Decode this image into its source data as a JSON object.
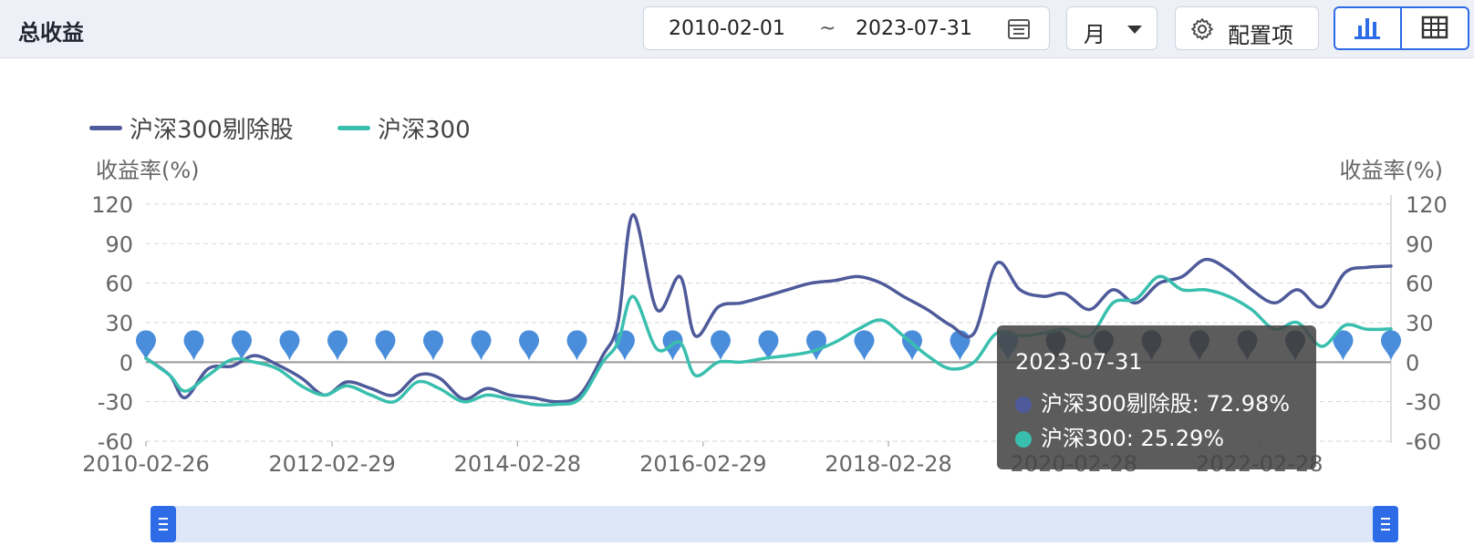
{
  "header": {
    "title": "总收益",
    "date_start": "2010-02-01",
    "date_separator": "~",
    "date_end": "2023-07-31",
    "period": "月",
    "config_label": "配置项",
    "icons": {
      "calendar": "calendar-icon",
      "dropdown": "chevron-down-icon",
      "config": "gear-icon",
      "chart_view": "bar-chart-icon",
      "table_view": "table-icon"
    },
    "active_view": "chart"
  },
  "tooltip": {
    "date": "2023-07-31",
    "rows": [
      {
        "label": "沪深300剔除股: 72.98%",
        "color": "#4e5a9a"
      },
      {
        "label": "沪深300: 25.29%",
        "color": "#39bfae"
      }
    ]
  },
  "chart_data": {
    "type": "line",
    "legend": [
      {
        "name": "沪深300剔除股",
        "color": "#4e5a9a"
      },
      {
        "name": "沪深300",
        "color": "#39bfae"
      }
    ],
    "ylabel_left": "收益率(%)",
    "ylabel_right": "收益率(%)",
    "ylim": [
      -60,
      120
    ],
    "yticks": [
      120,
      90,
      60,
      30,
      0,
      -30,
      -60
    ],
    "xlim": [
      "2010-02-26",
      "2023-07-31"
    ],
    "xticks": [
      "2010-02-26",
      "2012-02-29",
      "2014-02-28",
      "2016-02-29",
      "2018-02-28",
      "2020-02-28",
      "2022-02-28"
    ],
    "series": [
      {
        "name": "沪深300剔除股",
        "color": "#4e5a9a",
        "points": [
          [
            "2010-02-26",
            3
          ],
          [
            "2010-05-31",
            -10
          ],
          [
            "2010-07-30",
            -27
          ],
          [
            "2010-10-29",
            -5
          ],
          [
            "2011-01-31",
            -3
          ],
          [
            "2011-04-29",
            5
          ],
          [
            "2011-07-29",
            -2
          ],
          [
            "2011-10-31",
            -12
          ],
          [
            "2012-01-31",
            -25
          ],
          [
            "2012-04-27",
            -15
          ],
          [
            "2012-07-31",
            -20
          ],
          [
            "2012-10-31",
            -25
          ],
          [
            "2013-01-31",
            -10
          ],
          [
            "2013-04-26",
            -12
          ],
          [
            "2013-07-31",
            -28
          ],
          [
            "2013-10-31",
            -20
          ],
          [
            "2014-01-27",
            -25
          ],
          [
            "2014-04-30",
            -27
          ],
          [
            "2014-07-31",
            -30
          ],
          [
            "2014-10-31",
            -25
          ],
          [
            "2015-01-30",
            5
          ],
          [
            "2015-03-31",
            30
          ],
          [
            "2015-05-29",
            112
          ],
          [
            "2015-08-31",
            40
          ],
          [
            "2015-11-30",
            65
          ],
          [
            "2016-01-29",
            20
          ],
          [
            "2016-04-29",
            42
          ],
          [
            "2016-07-29",
            45
          ],
          [
            "2016-10-31",
            50
          ],
          [
            "2017-01-26",
            55
          ],
          [
            "2017-04-28",
            60
          ],
          [
            "2017-07-31",
            62
          ],
          [
            "2017-10-31",
            65
          ],
          [
            "2018-01-31",
            60
          ],
          [
            "2018-04-27",
            50
          ],
          [
            "2018-07-31",
            40
          ],
          [
            "2018-10-31",
            28
          ],
          [
            "2019-01-31",
            22
          ],
          [
            "2019-04-30",
            75
          ],
          [
            "2019-07-31",
            55
          ],
          [
            "2019-10-31",
            50
          ],
          [
            "2020-01-23",
            52
          ],
          [
            "2020-04-30",
            40
          ],
          [
            "2020-07-31",
            55
          ],
          [
            "2020-10-30",
            45
          ],
          [
            "2021-01-29",
            60
          ],
          [
            "2021-04-30",
            65
          ],
          [
            "2021-07-30",
            78
          ],
          [
            "2021-10-29",
            70
          ],
          [
            "2022-01-28",
            55
          ],
          [
            "2022-04-29",
            45
          ],
          [
            "2022-07-29",
            55
          ],
          [
            "2022-10-31",
            42
          ],
          [
            "2023-01-31",
            68
          ],
          [
            "2023-04-28",
            72
          ],
          [
            "2023-07-31",
            72.98
          ]
        ]
      },
      {
        "name": "沪深300",
        "color": "#39bfae",
        "points": [
          [
            "2010-02-26",
            3
          ],
          [
            "2010-05-31",
            -10
          ],
          [
            "2010-07-30",
            -22
          ],
          [
            "2010-10-29",
            -10
          ],
          [
            "2011-01-31",
            2
          ],
          [
            "2011-04-29",
            0
          ],
          [
            "2011-07-29",
            -5
          ],
          [
            "2011-10-31",
            -18
          ],
          [
            "2012-01-31",
            -25
          ],
          [
            "2012-04-27",
            -18
          ],
          [
            "2012-07-31",
            -25
          ],
          [
            "2012-10-31",
            -30
          ],
          [
            "2013-01-31",
            -15
          ],
          [
            "2013-04-26",
            -20
          ],
          [
            "2013-07-31",
            -30
          ],
          [
            "2013-10-31",
            -25
          ],
          [
            "2014-01-27",
            -28
          ],
          [
            "2014-04-30",
            -32
          ],
          [
            "2014-07-31",
            -32
          ],
          [
            "2014-10-31",
            -28
          ],
          [
            "2015-01-30",
            0
          ],
          [
            "2015-03-31",
            15
          ],
          [
            "2015-05-29",
            50
          ],
          [
            "2015-08-31",
            10
          ],
          [
            "2015-11-30",
            15
          ],
          [
            "2016-01-29",
            -10
          ],
          [
            "2016-04-29",
            0
          ],
          [
            "2016-07-29",
            0
          ],
          [
            "2016-10-31",
            3
          ],
          [
            "2017-01-26",
            5
          ],
          [
            "2017-04-28",
            8
          ],
          [
            "2017-07-31",
            15
          ],
          [
            "2017-10-31",
            25
          ],
          [
            "2018-01-31",
            32
          ],
          [
            "2018-04-27",
            20
          ],
          [
            "2018-07-31",
            5
          ],
          [
            "2018-10-31",
            -5
          ],
          [
            "2019-01-31",
            0
          ],
          [
            "2019-04-30",
            22
          ],
          [
            "2019-07-31",
            20
          ],
          [
            "2019-10-31",
            22
          ],
          [
            "2020-01-23",
            25
          ],
          [
            "2020-04-30",
            20
          ],
          [
            "2020-07-31",
            45
          ],
          [
            "2020-10-30",
            48
          ],
          [
            "2021-01-29",
            65
          ],
          [
            "2021-04-30",
            55
          ],
          [
            "2021-07-30",
            55
          ],
          [
            "2021-10-29",
            50
          ],
          [
            "2022-01-28",
            40
          ],
          [
            "2022-04-29",
            25
          ],
          [
            "2022-07-29",
            30
          ],
          [
            "2022-10-31",
            12
          ],
          [
            "2023-01-31",
            28
          ],
          [
            "2023-04-28",
            25
          ],
          [
            "2023-07-31",
            25.29
          ]
        ]
      }
    ],
    "markers": {
      "count": 27,
      "color_light": "#4a8edb",
      "color_dark": "#1f3a5c"
    },
    "grid": "dashed-horizontal",
    "legend_position": "top-left"
  }
}
